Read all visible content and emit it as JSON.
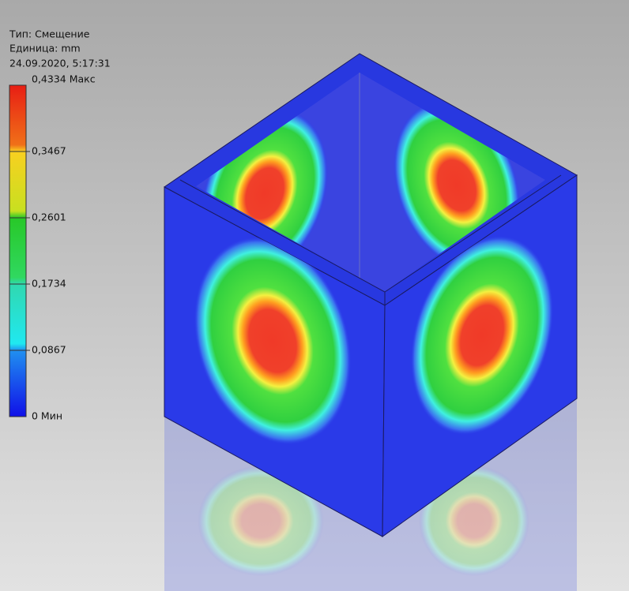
{
  "legend": {
    "type_line": "Тип: Смещение",
    "unit_line": "Единица: mm",
    "timestamp": "24.09.2020, 5:17:31",
    "scale_labels": [
      "0,4334 Макс",
      "0,3467",
      "0,2601",
      "0,1734",
      "0,0867",
      "0 Мин"
    ]
  }
}
